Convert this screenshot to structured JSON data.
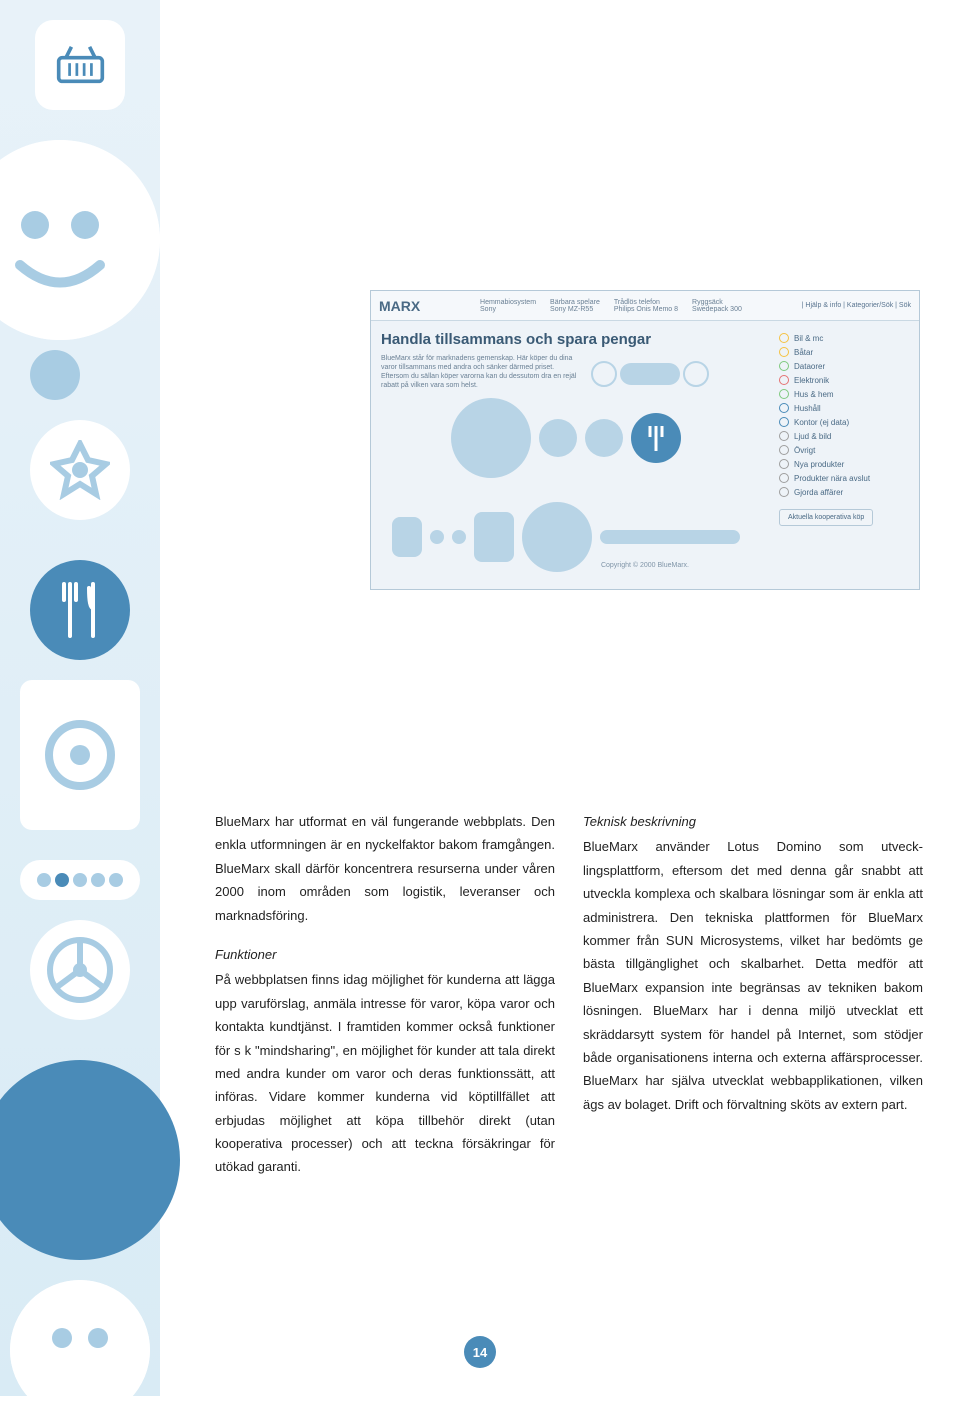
{
  "colors": {
    "accent": "#4a8bb8",
    "light": "#a8cce3",
    "bg_sidebar": "#e8f2f9",
    "text": "#222222",
    "ss_text": "#3a5a75"
  },
  "screenshot": {
    "logo": "MARX",
    "topnav": [
      {
        "l1": "Hemmabiosystem",
        "l2": "Sony"
      },
      {
        "l1": "Bärbara spelare",
        "l2": "Sony MZ-R55"
      },
      {
        "l1": "Trådlös telefon",
        "l2": "Philips Onis Memo 8"
      },
      {
        "l1": "Ryggsäck",
        "l2": "Swedepack 300"
      }
    ],
    "toplinks": "| Hjälp & info | Kategorier/Sök | Sök",
    "heading": "Handla tillsammans och spara pengar",
    "desc": "BlueMarx står för marknadens gemenskap. Här köper du dina varor tillsammans med andra och sänker därmed priset. Eftersom du sällan köper varorna kan du dessutom dra en rejäl rabatt på vilken vara som helst.",
    "categories": [
      {
        "label": "Bil & mc",
        "color": "#f5c242"
      },
      {
        "label": "Båtar",
        "color": "#f5c242"
      },
      {
        "label": "Dataorer",
        "color": "#7fc97f"
      },
      {
        "label": "Elektronik",
        "color": "#e57373"
      },
      {
        "label": "Hus & hem",
        "color": "#7fc97f"
      },
      {
        "label": "Hushåll",
        "color": "#4a8bb8"
      },
      {
        "label": "Kontor (ej data)",
        "color": "#4a8bb8"
      },
      {
        "label": "Ljud & bild",
        "color": "#9e9e9e"
      },
      {
        "label": "Övrigt",
        "color": "#9e9e9e"
      },
      {
        "label": "Nya produkter",
        "color": "#9e9e9e"
      },
      {
        "label": "Produkter nära avslut",
        "color": "#9e9e9e"
      },
      {
        "label": "Gjorda affärer",
        "color": "#9e9e9e"
      }
    ],
    "button": "Aktuella kooperativa köp",
    "footer": "Copyright © 2000 BlueMarx."
  },
  "text": {
    "col1": {
      "p1": "BlueMarx har utformat en väl fungerande webb­plats. Den enkla utformningen är en nyckelfak­tor bakom framgången. BlueMarx skall därför koncentrera resurserna under våren 2000 inom områden som logistik, leveranser och marknadsföring.",
      "h2": "Funktioner",
      "p2": "På webbplatsen finns idag möjlighet för kunder­na att lägga upp varuförslag, anmäla intresse för varor, köpa varor och kontakta kundtjänst. I framtiden kommer också funktioner för s k \"mindsharing\", en möjlighet för kunder att tala direkt med andra kunder om varor och deras funktionssätt, att införas. Vidare kommer kun­derna vid köptillfället att erbjudas möjlighet att köpa tillbehör direkt (utan kooperativa proces­ser) och att teckna försäkringar för utökad garanti."
    },
    "col2": {
      "h1": "Teknisk beskrivning",
      "p1": "BlueMarx använder Lotus Domino som utveck­lingsplattform, eftersom det med denna går snabbt att utveckla komplexa och skalbara lös­ningar som är enkla att administrera. Den tek­niska plattformen för BlueMarx kommer från SUN Microsystems, vilket har bedömts ge bästa tillgänglighet och skalbarhet. Detta med­för att BlueMarx expansion inte begränsas av tekniken bakom lösningen. BlueMarx har i denna miljö utvecklat ett skräddarsytt system för handel på Internet, som stödjer både orga­nisationens interna och externa affärsproces­ser. BlueMarx har själva utvecklat webbapplika­tionen, vilken ägs av bolaget. Drift och förvalt­ning sköts av extern part."
    }
  },
  "page_number": "14"
}
